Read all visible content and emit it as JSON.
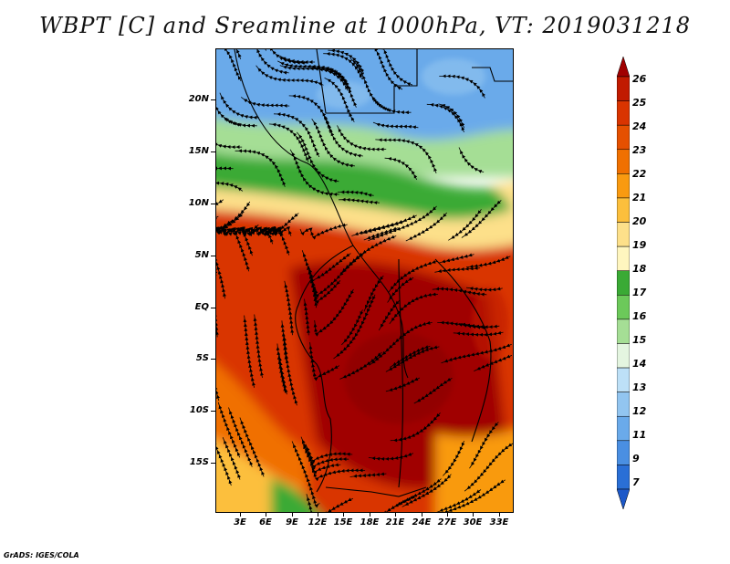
{
  "title": "WBPT [C] and Sreamline at 1000hPa, VT: 2019031218",
  "footer": "GrADS: IGES/COLA",
  "map": {
    "lat_labels": [
      "20N",
      "15N",
      "10N",
      "5N",
      "EQ",
      "5S",
      "10S",
      "15S"
    ],
    "lon_labels": [
      "3E",
      "6E",
      "9E",
      "12E",
      "15E",
      "18E",
      "21E",
      "24E",
      "27E",
      "30E",
      "33E"
    ]
  },
  "colorbar": {
    "levels": [
      "26",
      "25",
      "24",
      "23",
      "22",
      "21",
      "20",
      "19",
      "18",
      "17",
      "16",
      "15",
      "14",
      "13",
      "12",
      "11",
      "9",
      "7"
    ],
    "colors": [
      "#a00000",
      "#c11a00",
      "#d93400",
      "#e55000",
      "#f07000",
      "#f99a10",
      "#fcbf3c",
      "#fde08a",
      "#fff6bf",
      "#3aaa35",
      "#6cc95a",
      "#a5de95",
      "#e4f5e0",
      "#bde0f7",
      "#92c5f0",
      "#6aaaea",
      "#4a8fe2",
      "#2a6fd6",
      "#1c58c8"
    ]
  }
}
